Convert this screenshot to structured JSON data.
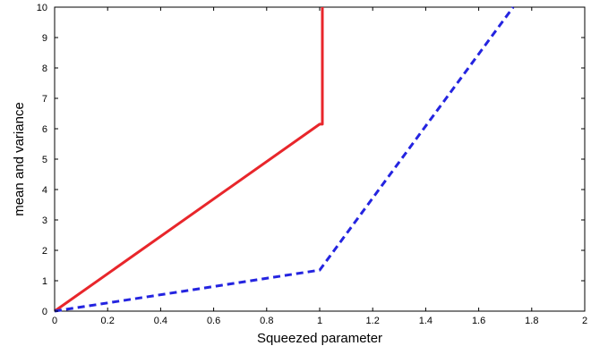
{
  "chart_data": {
    "type": "line",
    "title": "",
    "xlabel": "Squeezed parameter",
    "ylabel": "mean and variance",
    "xlim": [
      0,
      2
    ],
    "ylim": [
      0,
      10
    ],
    "xticks": [
      "0",
      "0.2",
      "0.4",
      "0.6",
      "0.8",
      "1",
      "1.2",
      "1.4",
      "1.6",
      "1.8",
      "2"
    ],
    "yticks": [
      "0",
      "1",
      "2",
      "3",
      "4",
      "5",
      "6",
      "7",
      "8",
      "9",
      "10"
    ],
    "grid": false,
    "legend": false,
    "series": [
      {
        "style": "solid",
        "color": "#e8262b",
        "x": [
          0,
          1,
          1.01,
          1.01
        ],
        "y": [
          0,
          6.15,
          6.15,
          10
        ]
      },
      {
        "style": "dashed",
        "color": "#2424e0",
        "x": [
          0,
          1,
          1.73
        ],
        "y": [
          0,
          1.35,
          10
        ]
      }
    ]
  }
}
